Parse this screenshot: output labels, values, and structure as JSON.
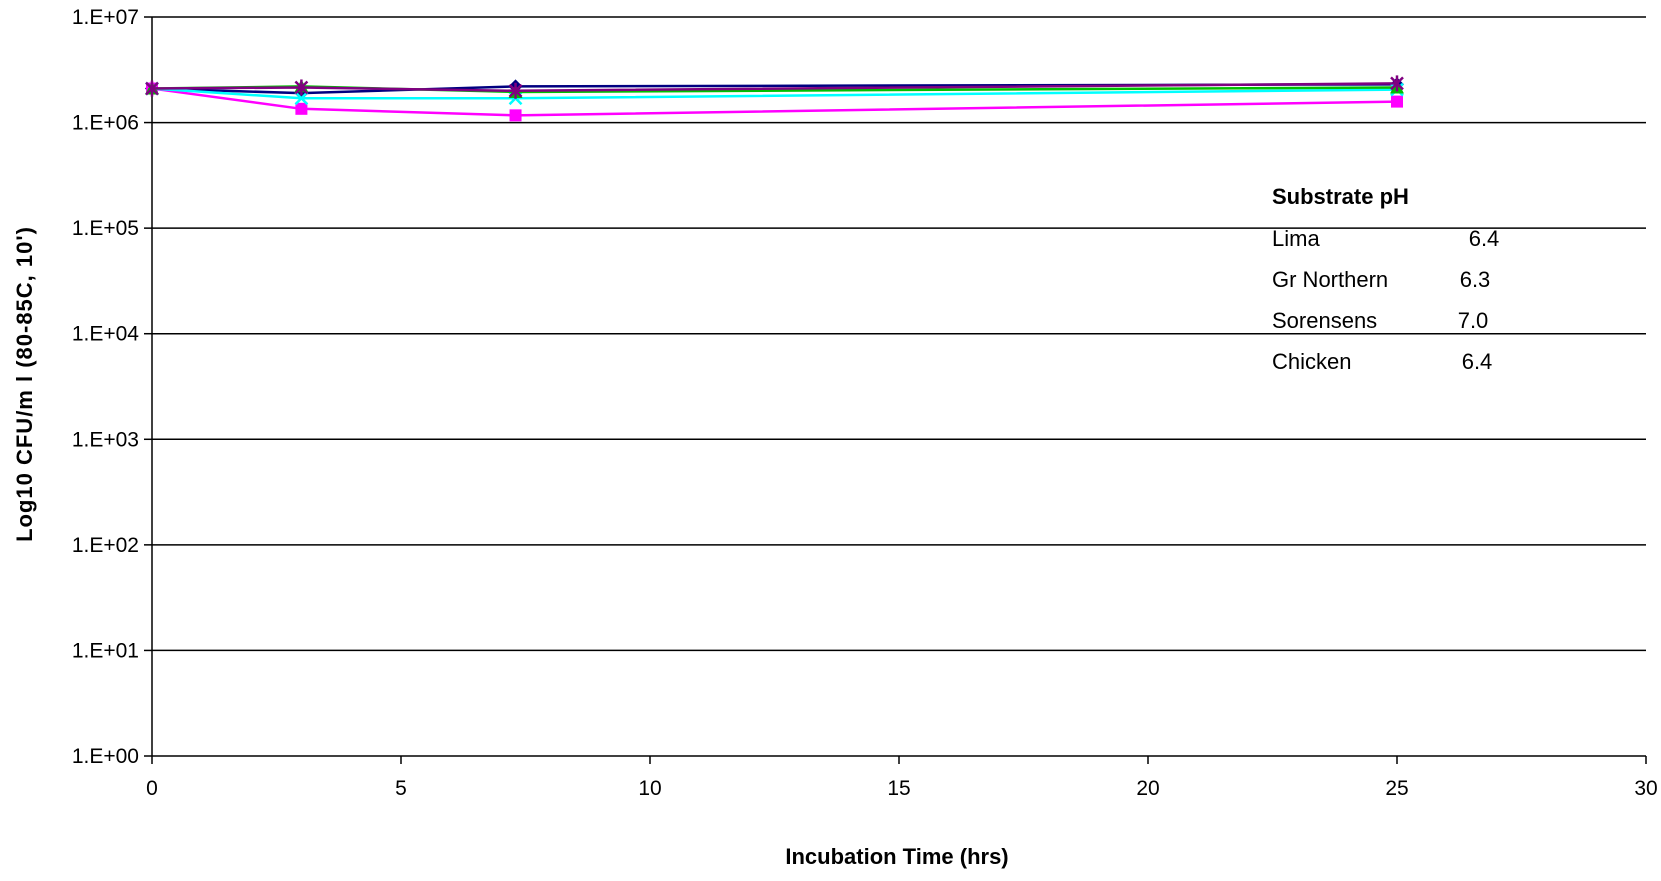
{
  "chart_data": {
    "type": "line",
    "xlabel": "Incubation Time (hrs)",
    "ylabel": "Log10 CFU/m l (80-85C, 10')",
    "y_scale": "log",
    "xlim": [
      0,
      30
    ],
    "ylim": [
      1,
      10000000
    ],
    "x_ticks": [
      0,
      5,
      10,
      15,
      20,
      25,
      30
    ],
    "x_tick_labels": [
      "0",
      "5",
      "10",
      "15",
      "20",
      "25",
      "30"
    ],
    "y_ticks": [
      1,
      10,
      100,
      1000,
      10000,
      100000,
      1000000,
      10000000
    ],
    "y_tick_labels": [
      "1.E+00",
      "1.E+01",
      "1.E+02",
      "1.E+03",
      "1.E+04",
      "1.E+05",
      "1.E+06",
      "1.E+07"
    ],
    "grid": "horizontal",
    "x": [
      0,
      3,
      7.3,
      25
    ],
    "series": [
      {
        "color": "#000080",
        "marker": "diamond",
        "values": [
          2100000,
          1900000,
          2200000,
          2300000
        ]
      },
      {
        "color": "#FF00FF",
        "marker": "square",
        "values": [
          2100000,
          1350000,
          1170000,
          1580000
        ]
      },
      {
        "color": "#00FFFF",
        "marker": "x",
        "values": [
          2100000,
          1700000,
          1700000,
          2050000
        ]
      },
      {
        "color": "#00C000",
        "marker": "triangle",
        "values": [
          2100000,
          2200000,
          1950000,
          2150000
        ]
      },
      {
        "color": "#800080",
        "marker": "star",
        "values": [
          2100000,
          2150000,
          2000000,
          2350000
        ]
      }
    ],
    "annotation": {
      "title": "Substrate pH",
      "rows": [
        {
          "name": "Lima",
          "value": "6.4"
        },
        {
          "name": "Gr Northern",
          "value": "6.3"
        },
        {
          "name": "Sorensens",
          "value": "7.0"
        },
        {
          "name": "Chicken",
          "value": "6.4"
        }
      ]
    }
  }
}
